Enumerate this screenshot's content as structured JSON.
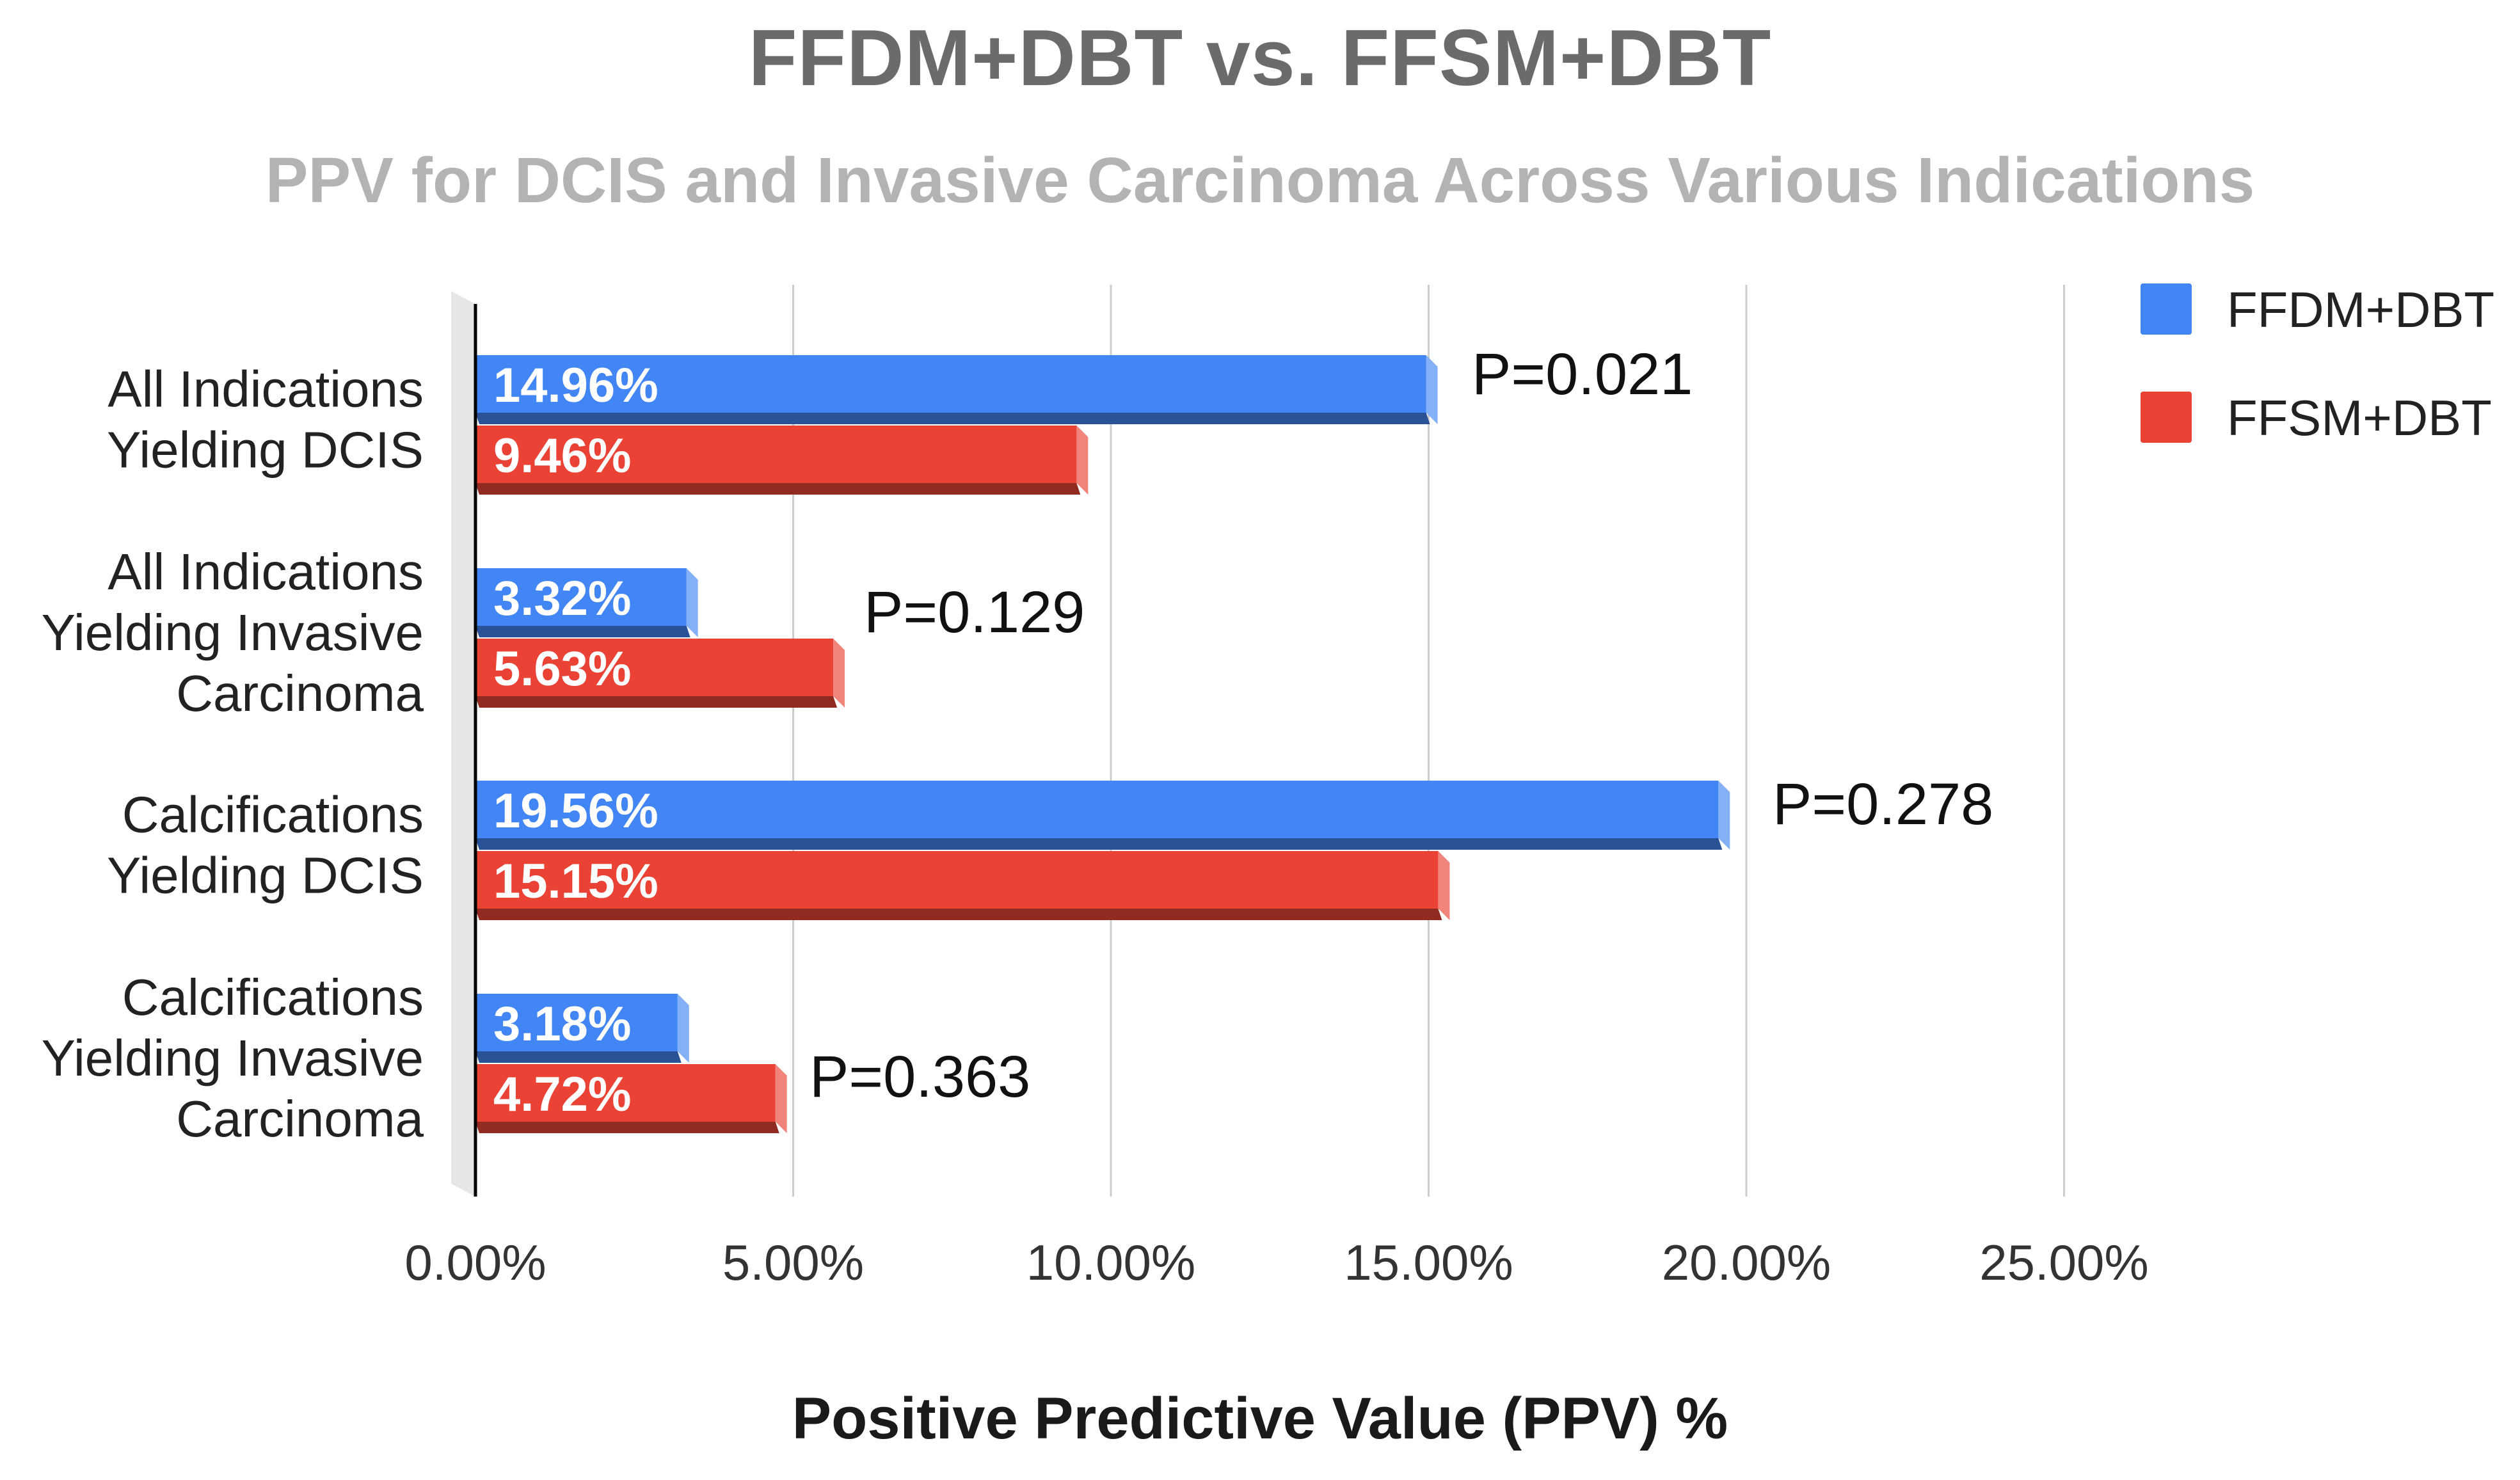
{
  "chart_data": {
    "type": "bar",
    "orientation": "horizontal",
    "title": "FFDM+DBT vs. FFSM+DBT",
    "subtitle": "PPV for DCIS and Invasive Carcinoma Across Various Indications",
    "xlabel": "Positive Predictive Value (PPV) %",
    "ylabel": "",
    "xlim": [
      0,
      25
    ],
    "xticks": [
      0,
      5,
      10,
      15,
      20,
      25
    ],
    "xtick_labels": [
      "0.00%",
      "5.00%",
      "10.00%",
      "15.00%",
      "20.00%",
      "25.00%"
    ],
    "grid": true,
    "legend_position": "top-right",
    "categories": [
      [
        "All Indications",
        "Yielding DCIS"
      ],
      [
        "All Indications",
        "Yielding Invasive",
        "Carcinoma"
      ],
      [
        "Calcifications",
        "Yielding DCIS"
      ],
      [
        "Calcifications",
        "Yielding Invasive",
        "Carcinoma"
      ]
    ],
    "series": [
      {
        "name": "FFDM+DBT",
        "color": "#4285f4",
        "values": [
          14.96,
          3.32,
          19.56,
          3.18
        ],
        "labels": [
          "14.96%",
          "3.32%",
          "19.56%",
          "3.18%"
        ]
      },
      {
        "name": "FFSM+DBT",
        "color": "#ea4335",
        "values": [
          9.46,
          5.63,
          15.15,
          4.72
        ],
        "labels": [
          "9.46%",
          "5.63%",
          "15.15%",
          "4.72%"
        ]
      }
    ],
    "annotations": [
      "P=0.021",
      "P=0.129",
      "P=0.278",
      "P=0.363"
    ]
  }
}
